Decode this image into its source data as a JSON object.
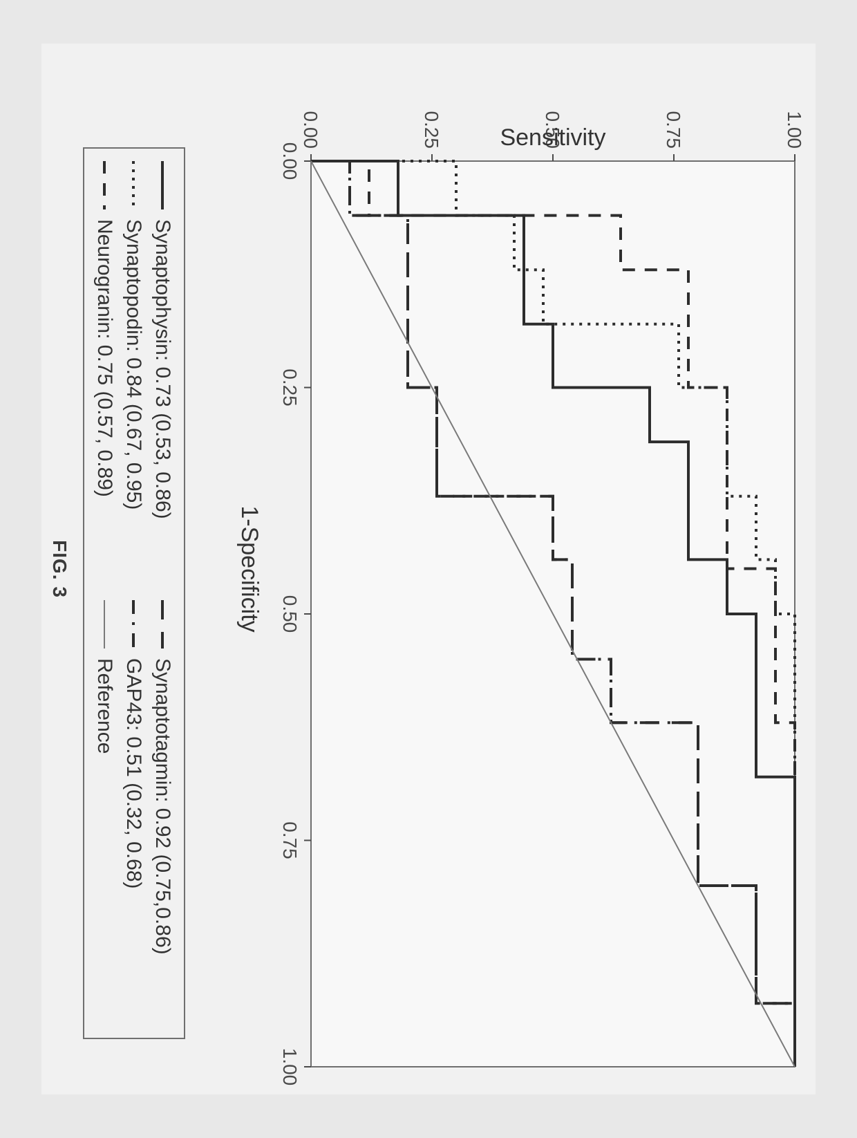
{
  "figure_caption": "FIG. 3",
  "chart": {
    "type": "line",
    "background_color": "#f1f1f1",
    "plot_background_color": "#f8f8f8",
    "border_color": "#6f6f6f",
    "border_width": 2,
    "xlabel": "1-Specificity",
    "ylabel": "Sensitivity",
    "label_fontsize": 34,
    "tick_fontsize": 28,
    "tick_color": "#4a4a4a",
    "xlim": [
      0.0,
      1.0
    ],
    "ylim": [
      0.0,
      1.0
    ],
    "xticks": [
      0.0,
      0.25,
      0.5,
      0.75,
      1.0
    ],
    "yticks": [
      0.0,
      0.25,
      0.5,
      0.75,
      1.0
    ],
    "xtick_labels": [
      "0.00",
      "0.25",
      "0.50",
      "0.75",
      "1.00"
    ],
    "ytick_labels": [
      "0.00",
      "0.25",
      "0.50",
      "0.75",
      "1.00"
    ],
    "grid": false,
    "line_width": 4,
    "series": [
      {
        "key": "synaptophysin",
        "label": "Synaptophysin: 0.73 (0.53, 0.86)",
        "dash": "solid",
        "color": "#2d2d2d",
        "points": [
          [
            0.0,
            0.0
          ],
          [
            0.0,
            0.18
          ],
          [
            0.06,
            0.18
          ],
          [
            0.06,
            0.22
          ],
          [
            0.06,
            0.44
          ],
          [
            0.18,
            0.44
          ],
          [
            0.18,
            0.5
          ],
          [
            0.25,
            0.5
          ],
          [
            0.25,
            0.7
          ],
          [
            0.31,
            0.7
          ],
          [
            0.31,
            0.78
          ],
          [
            0.44,
            0.78
          ],
          [
            0.44,
            0.86
          ],
          [
            0.5,
            0.86
          ],
          [
            0.5,
            0.92
          ],
          [
            0.68,
            0.92
          ],
          [
            0.68,
            1.0
          ],
          [
            1.0,
            1.0
          ]
        ]
      },
      {
        "key": "synaptopodin",
        "label": "Synaptopodin: 0.84 (0.67, 0.95)",
        "dash": "dot",
        "color": "#2d2d2d",
        "points": [
          [
            0.0,
            0.0
          ],
          [
            0.0,
            0.3
          ],
          [
            0.06,
            0.3
          ],
          [
            0.06,
            0.42
          ],
          [
            0.12,
            0.42
          ],
          [
            0.12,
            0.48
          ],
          [
            0.18,
            0.48
          ],
          [
            0.18,
            0.66
          ],
          [
            0.18,
            0.76
          ],
          [
            0.25,
            0.76
          ],
          [
            0.25,
            0.86
          ],
          [
            0.37,
            0.86
          ],
          [
            0.37,
            0.92
          ],
          [
            0.44,
            0.92
          ],
          [
            0.44,
            0.96
          ],
          [
            0.5,
            0.96
          ],
          [
            0.5,
            1.0
          ],
          [
            1.0,
            1.0
          ]
        ]
      },
      {
        "key": "neurogranin",
        "label": "Neurogranin: 0.75 (0.57, 0.89)",
        "dash": "dash",
        "color": "#2d2d2d",
        "points": [
          [
            0.0,
            0.0
          ],
          [
            0.0,
            0.12
          ],
          [
            0.06,
            0.12
          ],
          [
            0.06,
            0.5
          ],
          [
            0.06,
            0.64
          ],
          [
            0.12,
            0.64
          ],
          [
            0.12,
            0.78
          ],
          [
            0.25,
            0.78
          ],
          [
            0.25,
            0.86
          ],
          [
            0.45,
            0.86
          ],
          [
            0.45,
            0.96
          ],
          [
            0.62,
            0.96
          ],
          [
            0.62,
            1.0
          ],
          [
            1.0,
            1.0
          ]
        ]
      },
      {
        "key": "synaptotagmin",
        "label": "Synaptotagmin: 0.92 (0.75,0.86)",
        "dash": "longdash",
        "color": "#2d2d2d",
        "points": [
          [
            0.0,
            0.0
          ],
          [
            0.0,
            0.08
          ],
          [
            0.06,
            0.08
          ],
          [
            0.06,
            0.2
          ],
          [
            0.25,
            0.2
          ],
          [
            0.25,
            0.26
          ],
          [
            0.37,
            0.26
          ],
          [
            0.37,
            0.38
          ],
          [
            0.37,
            0.5
          ],
          [
            0.44,
            0.5
          ],
          [
            0.44,
            0.54
          ],
          [
            0.55,
            0.54
          ],
          [
            0.55,
            0.62
          ],
          [
            0.62,
            0.62
          ],
          [
            0.62,
            0.8
          ],
          [
            0.8,
            0.8
          ],
          [
            0.8,
            0.92
          ],
          [
            0.93,
            0.92
          ],
          [
            0.93,
            1.0
          ],
          [
            1.0,
            1.0
          ]
        ]
      },
      {
        "key": "gap43",
        "label": "GAP43: 0.51 (0.32, 0.68)",
        "dash": "dashdot",
        "color": "#2d2d2d",
        "points": [
          [
            0.0,
            0.0
          ],
          [
            0.0,
            0.08
          ],
          [
            0.06,
            0.08
          ],
          [
            0.06,
            0.2
          ],
          [
            0.25,
            0.2
          ],
          [
            0.25,
            0.26
          ],
          [
            0.37,
            0.26
          ],
          [
            0.37,
            0.38
          ],
          [
            0.37,
            0.5
          ],
          [
            0.44,
            0.5
          ],
          [
            0.44,
            0.54
          ],
          [
            0.55,
            0.54
          ],
          [
            0.55,
            0.62
          ],
          [
            0.62,
            0.62
          ],
          [
            0.62,
            0.8
          ],
          [
            0.8,
            0.8
          ],
          [
            0.8,
            0.92
          ],
          [
            0.93,
            0.92
          ],
          [
            0.93,
            1.0
          ],
          [
            1.0,
            1.0
          ]
        ]
      },
      {
        "key": "reference",
        "label": "Reference",
        "dash": "thin-solid",
        "color": "#7a7a7a",
        "line_width": 2,
        "points": [
          [
            0.0,
            0.0
          ],
          [
            1.0,
            1.0
          ]
        ]
      }
    ],
    "legend": {
      "position": "bottom",
      "columns": 2,
      "order": [
        "synaptophysin",
        "synaptotagmin",
        "synaptopodin",
        "gap43",
        "neurogranin",
        "reference"
      ],
      "fontsize": 30,
      "border_color": "#6f6f6f",
      "border_width": 2
    }
  }
}
